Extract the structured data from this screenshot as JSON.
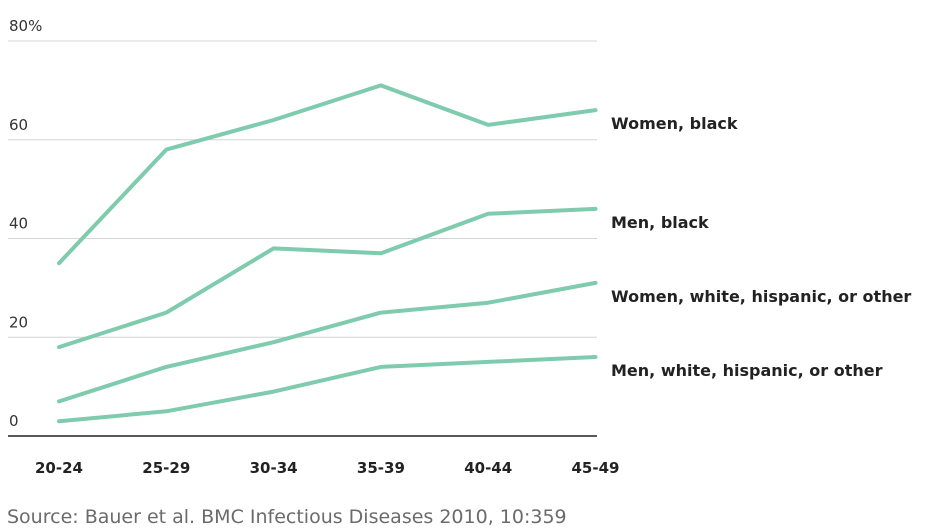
{
  "chart_data": {
    "type": "line",
    "categories": [
      "20-24",
      "25-29",
      "30-34",
      "35-39",
      "40-44",
      "45-49"
    ],
    "ylim": [
      0,
      80
    ],
    "yticks": [
      {
        "value": 0,
        "label": "0"
      },
      {
        "value": 20,
        "label": "20"
      },
      {
        "value": 40,
        "label": "40"
      },
      {
        "value": 60,
        "label": "60"
      },
      {
        "value": 80,
        "label": "80%"
      }
    ],
    "grid": true,
    "legend": "inline-right",
    "line_color": "#7fcbae",
    "series": [
      {
        "name": "Women, black",
        "values": [
          35,
          58,
          64,
          71,
          63,
          66
        ]
      },
      {
        "name": "Men, black",
        "values": [
          18,
          25,
          38,
          37,
          45,
          46
        ]
      },
      {
        "name": "Women, white, hispanic, or other",
        "values": [
          7,
          14,
          19,
          25,
          27,
          31
        ]
      },
      {
        "name": "Men, white, hispanic, or other",
        "values": [
          3,
          5,
          9,
          14,
          15,
          16
        ]
      }
    ],
    "source": "Source: Bauer et al. BMC Infectious Diseases 2010, 10:359"
  }
}
